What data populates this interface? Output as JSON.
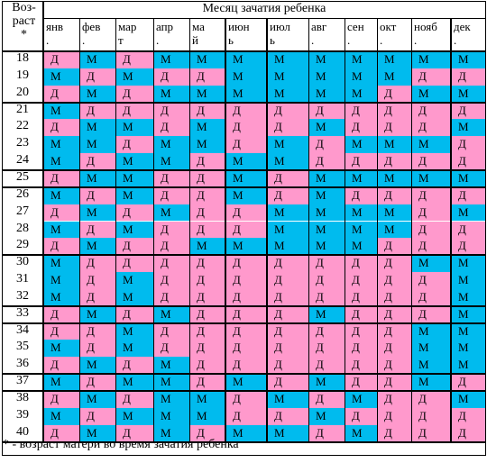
{
  "colors": {
    "male": "#00bbee",
    "female": "#ff99cc",
    "grid": "#000000"
  },
  "header": {
    "age_label": "Воз-\nраст\n*",
    "title": "Месяц зачатия ребенка",
    "months": [
      "янв\n.",
      "фев\n.",
      "мар\nт",
      "апр\n.",
      "ма\nй",
      "июн\nь",
      "июл\nь",
      "авг\n.",
      "сен\n.",
      "окт\n.",
      "нояб\n.",
      "дек\n."
    ]
  },
  "rows": [
    {
      "age": "18",
      "cells": [
        "Д",
        "М",
        "Д",
        "М",
        "М",
        "М",
        "М",
        "М",
        "М",
        "М",
        "М",
        "М"
      ]
    },
    {
      "age": "19",
      "cells": [
        "М",
        "Д",
        "М",
        "Д",
        "Д",
        "М",
        "М",
        "М",
        "М",
        "М",
        "Д",
        "Д"
      ]
    },
    {
      "age": "20",
      "cells": [
        "Д",
        "М",
        "Д",
        "М",
        "М",
        "М",
        "М",
        "М",
        "М",
        "Д",
        "М",
        "М"
      ]
    },
    {
      "age": "21",
      "cells": [
        "М",
        "Д",
        "Д",
        "Д",
        "Д",
        "Д",
        "Д",
        "Д",
        "Д",
        "Д",
        "Д",
        "Д"
      ]
    },
    {
      "age": "22",
      "cells": [
        "Д",
        "М",
        "М",
        "Д",
        "М",
        "Д",
        "Д",
        "М",
        "Д",
        "Д",
        "Д",
        "М"
      ]
    },
    {
      "age": "23",
      "cells": [
        "М",
        "М",
        "Д",
        "М",
        "М",
        "Д",
        "М",
        "Д",
        "М",
        "М",
        "М",
        "Д"
      ]
    },
    {
      "age": "24",
      "cells": [
        "М",
        "Д",
        "М",
        "М",
        "Д",
        "М",
        "М",
        "Д",
        "Д",
        "Д",
        "Д",
        "Д"
      ]
    },
    {
      "age": "25",
      "cells": [
        "Д",
        "М",
        "М",
        "Д",
        "Д",
        "М",
        "Д",
        "М",
        "М",
        "М",
        "М",
        "М"
      ]
    },
    {
      "age": "26",
      "cells": [
        "М",
        "Д",
        "М",
        "Д",
        "Д",
        "М",
        "Д",
        "М",
        "Д",
        "Д",
        "Д",
        "Д"
      ]
    },
    {
      "age": "27",
      "cells": [
        "Д",
        "М",
        "Д",
        "М",
        "Д",
        "Д",
        "М",
        "М",
        "М",
        "М",
        "Д",
        "М"
      ]
    },
    {
      "age": "28",
      "cells": [
        "М",
        "Д",
        "М",
        "Д",
        "Д",
        "Д",
        "М",
        "М",
        "М",
        "М",
        "Д",
        "Д"
      ]
    },
    {
      "age": "29",
      "cells": [
        "Д",
        "М",
        "Д",
        "Д",
        "М",
        "М",
        "М",
        "М",
        "М",
        "Д",
        "Д",
        "Д"
      ]
    },
    {
      "age": "30",
      "cells": [
        "М",
        "Д",
        "Д",
        "Д",
        "Д",
        "Д",
        "Д",
        "Д",
        "Д",
        "Д",
        "М",
        "М"
      ]
    },
    {
      "age": "31",
      "cells": [
        "М",
        "Д",
        "М",
        "Д",
        "Д",
        "Д",
        "Д",
        "Д",
        "Д",
        "Д",
        "Д",
        "М"
      ]
    },
    {
      "age": "32",
      "cells": [
        "М",
        "Д",
        "М",
        "Д",
        "Д",
        "Д",
        "Д",
        "Д",
        "Д",
        "Д",
        "Д",
        "М"
      ]
    },
    {
      "age": "33",
      "cells": [
        "Д",
        "М",
        "Д",
        "М",
        "Д",
        "Д",
        "Д",
        "М",
        "Д",
        "Д",
        "Д",
        "М"
      ]
    },
    {
      "age": "34",
      "cells": [
        "Д",
        "Д",
        "М",
        "Д",
        "Д",
        "Д",
        "Д",
        "Д",
        "Д",
        "Д",
        "М",
        "М"
      ]
    },
    {
      "age": "35",
      "cells": [
        "М",
        "Д",
        "М",
        "Д",
        "Д",
        "Д",
        "Д",
        "Д",
        "Д",
        "Д",
        "М",
        "М"
      ]
    },
    {
      "age": "36",
      "cells": [
        "Д",
        "М",
        "Д",
        "М",
        "Д",
        "Д",
        "Д",
        "Д",
        "Д",
        "Д",
        "М",
        "М"
      ]
    },
    {
      "age": "37",
      "cells": [
        "М",
        "Д",
        "М",
        "М",
        "Д",
        "М",
        "Д",
        "М",
        "Д",
        "Д",
        "М",
        "Д"
      ]
    },
    {
      "age": "38",
      "cells": [
        "Д",
        "М",
        "Д",
        "М",
        "М",
        "Д",
        "М",
        "Д",
        "М",
        "Д",
        "Д",
        "М"
      ]
    },
    {
      "age": "39",
      "cells": [
        "М",
        "Д",
        "М",
        "М",
        "М",
        "Д",
        "Д",
        "М",
        "Д",
        "Д",
        "Д",
        "Д"
      ]
    },
    {
      "age": "40",
      "cells": [
        "Д",
        "М",
        "Д",
        "М",
        "Д",
        "М",
        "М",
        "Д",
        "М",
        "Д",
        "Д",
        "Д"
      ]
    }
  ],
  "footnote": "* - возраст матери во время зачатия ребенка"
}
